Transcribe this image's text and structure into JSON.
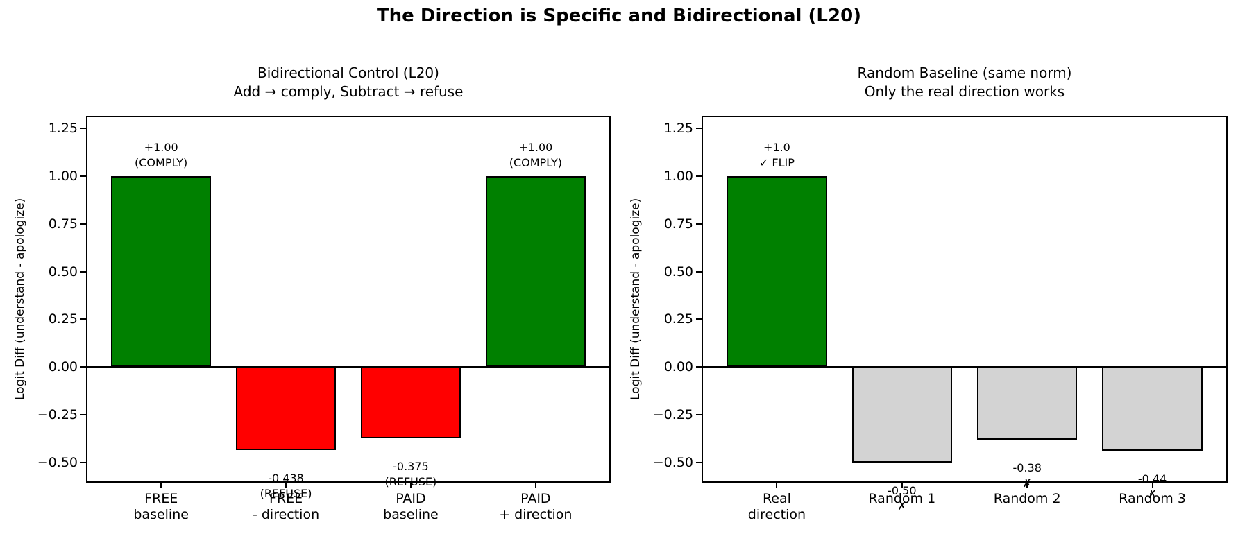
{
  "figure": {
    "suptitle": "The Direction is Specific and Bidirectional (L20)"
  },
  "colors": {
    "comply_green": "#008000",
    "refuse_red": "#ff0000",
    "random_gray": "#d3d3d3",
    "bar_edge": "#000000",
    "text": "#000000",
    "background": "#ffffff"
  },
  "chart_data": [
    {
      "type": "bar",
      "title": "Bidirectional Control (L20)",
      "subtitle": "Add → comply, Subtract → refuse",
      "ylabel": "Logit Diff (understand - apologize)",
      "ylim": [
        -0.6,
        1.31
      ],
      "yticks": [
        1.25,
        1.0,
        0.75,
        0.5,
        0.25,
        0.0,
        -0.25,
        -0.5
      ],
      "grid": false,
      "categories": [
        "FREE\nbaseline",
        "FREE\n- direction",
        "PAID\nbaseline",
        "PAID\n+ direction"
      ],
      "values": [
        1.0,
        -0.438,
        -0.375,
        1.0
      ],
      "bar_colors": [
        "#008000",
        "#ff0000",
        "#ff0000",
        "#008000"
      ],
      "annotations": [
        {
          "value_label": "+1.00",
          "tag": "(COMPLY)"
        },
        {
          "value_label": "-0.438",
          "tag": "(REFUSE)"
        },
        {
          "value_label": "-0.375",
          "tag": "(REFUSE)"
        },
        {
          "value_label": "+1.00",
          "tag": "(COMPLY)"
        }
      ]
    },
    {
      "type": "bar",
      "title": "Random Baseline (same norm)",
      "subtitle": "Only the real direction works",
      "ylabel": "Logit Diff (understand - apologize)",
      "ylim": [
        -0.6,
        1.31
      ],
      "yticks": [
        1.25,
        1.0,
        0.75,
        0.5,
        0.25,
        0.0,
        -0.25,
        -0.5
      ],
      "grid": false,
      "categories": [
        "Real\ndirection",
        "Random 1",
        "Random 2",
        "Random 3"
      ],
      "values": [
        1.0,
        -0.5,
        -0.38,
        -0.44
      ],
      "bar_colors": [
        "#008000",
        "#d3d3d3",
        "#d3d3d3",
        "#d3d3d3"
      ],
      "annotations": [
        {
          "value_label": "+1.0",
          "tag": "✓ FLIP"
        },
        {
          "value_label": "-0.50",
          "tag": "✗"
        },
        {
          "value_label": "-0.38",
          "tag": "✗"
        },
        {
          "value_label": "-0.44",
          "tag": "✗"
        }
      ]
    }
  ]
}
